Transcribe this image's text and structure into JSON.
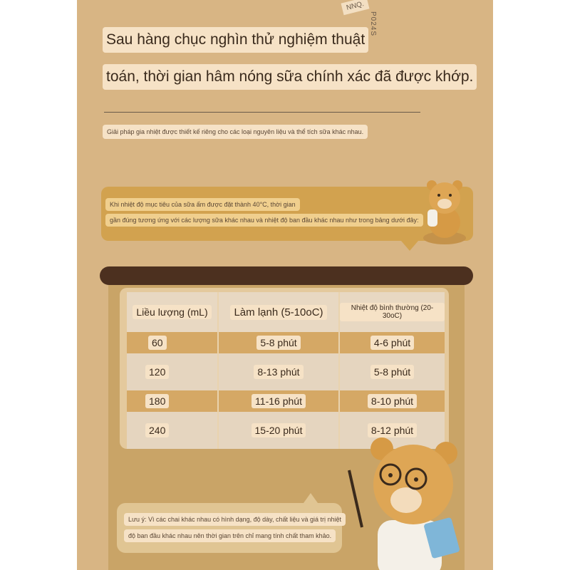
{
  "stamp": {
    "label": "NNQ.",
    "code": "P024S"
  },
  "headline": {
    "line1": "Sau hàng chục nghìn thử nghiệm thuật",
    "line2": "toán, thời gian hâm nóng sữa chính xác đã được khớp."
  },
  "subtitle": "Giải pháp gia nhiệt được thiết kế riêng cho các loại nguyên liệu và thể tích sữa khác nhau.",
  "intro": {
    "line1": "Khi nhiệt độ mục tiêu của sữa ấm được đặt thành 40°C, thời gian",
    "line2": "gần đúng tương ứng với các lượng sữa khác nhau và nhiệt độ ban đầu khác nhau như trong bảng dưới đây:"
  },
  "table": {
    "headers": [
      "Liều lượng (mL)",
      "Làm lạnh (5-10oC)",
      "Nhiệt độ bình thường (20-30oC)"
    ],
    "rows": [
      [
        "60",
        "5-8 phút",
        "4-6 phút"
      ],
      [
        "120",
        "8-13 phút",
        "5-8 phút"
      ],
      [
        "180",
        "11-16 phút",
        "8-10 phút"
      ],
      [
        "240",
        "15-20 phút",
        "8-12 phút"
      ]
    ]
  },
  "note": {
    "line1": "Lưu ý: Vì các chai khác nhau có hình dạng, độ dày, chất liệu và giá trị nhiệt",
    "line2": "độ ban đầu khác nhau nên thời gian trên chỉ mang tính chất tham khảo."
  }
}
